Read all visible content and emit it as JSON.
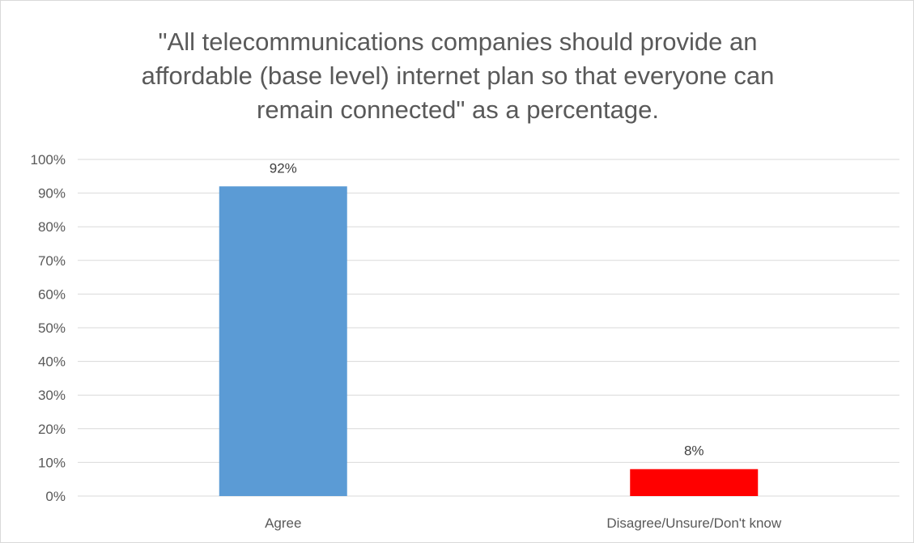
{
  "chart_data": {
    "type": "bar",
    "title": "\"All telecommunications companies should provide an affordable (base level) internet plan so that everyone can remain connected\" as a percentage.",
    "categories": [
      "Agree",
      "Disagree/Unsure/Don't know"
    ],
    "values": [
      92,
      8
    ],
    "data_labels": [
      "92%",
      "8%"
    ],
    "bar_colors": [
      "#5b9bd5",
      "#ff0000"
    ],
    "ylim": [
      0,
      100
    ],
    "y_ticks": [
      "0%",
      "10%",
      "20%",
      "30%",
      "40%",
      "50%",
      "60%",
      "70%",
      "80%",
      "90%",
      "100%"
    ],
    "xlabel": "",
    "ylabel": "",
    "grid": true,
    "legend": "none"
  }
}
